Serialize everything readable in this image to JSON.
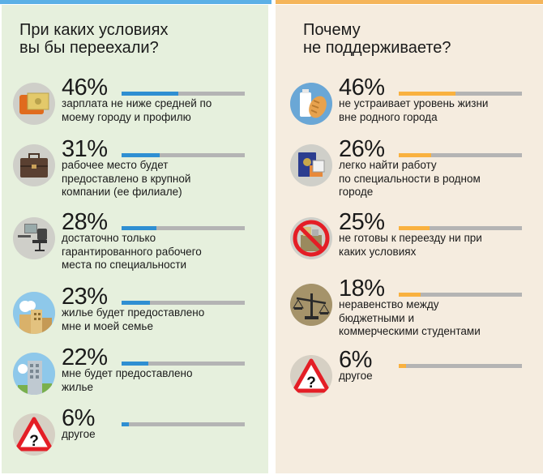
{
  "colors": {
    "left_bar": "#2f8fd2",
    "right_bar": "#f9b13f",
    "track": "#b4b4b4",
    "left_bg": "#e6f0dd",
    "right_bg": "#f5ecdf",
    "top_left": "#5bb0e6",
    "top_right": "#f5b55a"
  },
  "chart_data": [
    {
      "type": "bar",
      "title": "При каких условиях\nвы бы переехали?",
      "unit": "%",
      "categories": [
        "зарплата не ниже средней по\nмоему городу и профилю",
        "рабочее место будет\nпредоставлено в крупной\nкомпании (ее филиале)",
        "достаточно только\nгарантированного рабочего\nместа по специальности",
        "жилье будет предоставлено\nмне и моей семье",
        "мне будет предоставлено\nжилье",
        "другое"
      ],
      "values": [
        46,
        31,
        28,
        23,
        22,
        6
      ],
      "labels": [
        "46%",
        "31%",
        "28%",
        "23%",
        "22%",
        "6%"
      ],
      "icons": [
        "wallet-money-icon",
        "briefcase-icon",
        "office-chair-icon",
        "city-buildings-icon",
        "apartment-building-icon",
        "warning-question-icon"
      ]
    },
    {
      "type": "bar",
      "title": "Почему\nне поддерживаете?",
      "unit": "%",
      "categories": [
        "не устраивает уровень жизни\nвне родного города",
        "легко найти работу\nпо специальности в родном\nгороде",
        "не готовы к переезду ни при\nкаких условиях",
        "неравенство между\nбюджетными и\nкоммерческими студентами",
        "другое"
      ],
      "values": [
        46,
        26,
        25,
        18,
        6
      ],
      "labels": [
        "46%",
        "26%",
        "25%",
        "18%",
        "6%"
      ],
      "icons": [
        "milk-bread-icon",
        "passport-document-icon",
        "no-moving-icon",
        "balance-scale-icon",
        "warning-question-icon"
      ]
    }
  ]
}
